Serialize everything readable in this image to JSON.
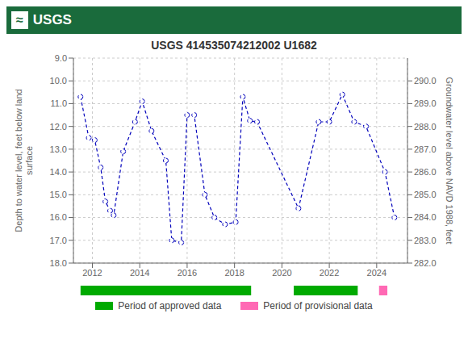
{
  "chart_data": {
    "type": "line",
    "title": "USGS 414535074212002 U1682",
    "annotations": [
      "≈",
      "USGS"
    ],
    "y_label": "Depth to water level, feet below land\nsurface",
    "y2_label": "Groundwater level above NAVD 1988, feet",
    "x": [
      2011.5,
      2011.85,
      2012.1,
      2012.35,
      2012.55,
      2012.75,
      2012.9,
      2013.3,
      2013.8,
      2014.1,
      2014.5,
      2015.1,
      2015.35,
      2015.75,
      2016.0,
      2016.3,
      2016.75,
      2017.15,
      2017.6,
      2018.05,
      2018.35,
      2018.65,
      2018.95,
      2020.7,
      2021.55,
      2022.0,
      2022.55,
      2023.05,
      2023.55,
      2024.35,
      2024.75
    ],
    "values": [
      10.7,
      12.5,
      12.6,
      13.8,
      15.3,
      15.7,
      15.9,
      13.1,
      11.8,
      10.9,
      12.2,
      13.5,
      17.0,
      17.1,
      11.5,
      11.5,
      15.0,
      16.0,
      16.3,
      16.2,
      10.7,
      11.75,
      11.8,
      15.6,
      11.8,
      11.8,
      10.6,
      11.8,
      12.0,
      14.0,
      16.0
    ],
    "color": "#0000BB",
    "marker": "circle",
    "line_style": "dashed",
    "xlim": [
      2011.2,
      2025.3
    ],
    "xticks": [
      2012,
      2014,
      2016,
      2018,
      2020,
      2022,
      2024
    ],
    "ylim": [
      18.0,
      9.0
    ],
    "yticks": [
      {
        "value": 9.0,
        "label": "9.0"
      },
      {
        "value": 10.0,
        "label": "10.0"
      },
      {
        "value": 11.0,
        "label": "11.0"
      },
      {
        "value": 12.0,
        "label": "12.0"
      },
      {
        "value": 13.0,
        "label": "13.0"
      },
      {
        "value": 14.0,
        "label": "14.0"
      },
      {
        "value": 15.0,
        "label": "15.0"
      },
      {
        "value": 16.0,
        "label": "16.0"
      },
      {
        "value": 17.0,
        "label": "17.0"
      },
      {
        "value": 18.0,
        "label": "18.0"
      }
    ],
    "y2lim": [
      282.0,
      291.0
    ],
    "y2ticks": [
      {
        "value": 282.0,
        "label": "282.0"
      },
      {
        "value": 283.0,
        "label": "283.0"
      },
      {
        "value": 284.0,
        "label": "284.0"
      },
      {
        "value": 285.0,
        "label": "285.0"
      },
      {
        "value": 286.0,
        "label": "286.0"
      },
      {
        "value": 287.0,
        "label": "287.0"
      },
      {
        "value": 288.0,
        "label": "288.0"
      },
      {
        "value": 289.0,
        "label": "289.0"
      },
      {
        "value": 290.0,
        "label": "290.0"
      }
    ],
    "grid": true,
    "periods": [
      {
        "name": "Period of approved data",
        "color": "#00AA00",
        "ranges": [
          [
            2011.5,
            2018.7
          ],
          [
            2020.5,
            2023.2
          ]
        ]
      },
      {
        "name": "Period of provisional data",
        "color": "#FF69B4",
        "ranges": [
          [
            2024.1,
            2024.45
          ]
        ]
      }
    ],
    "legend": "bottom"
  }
}
